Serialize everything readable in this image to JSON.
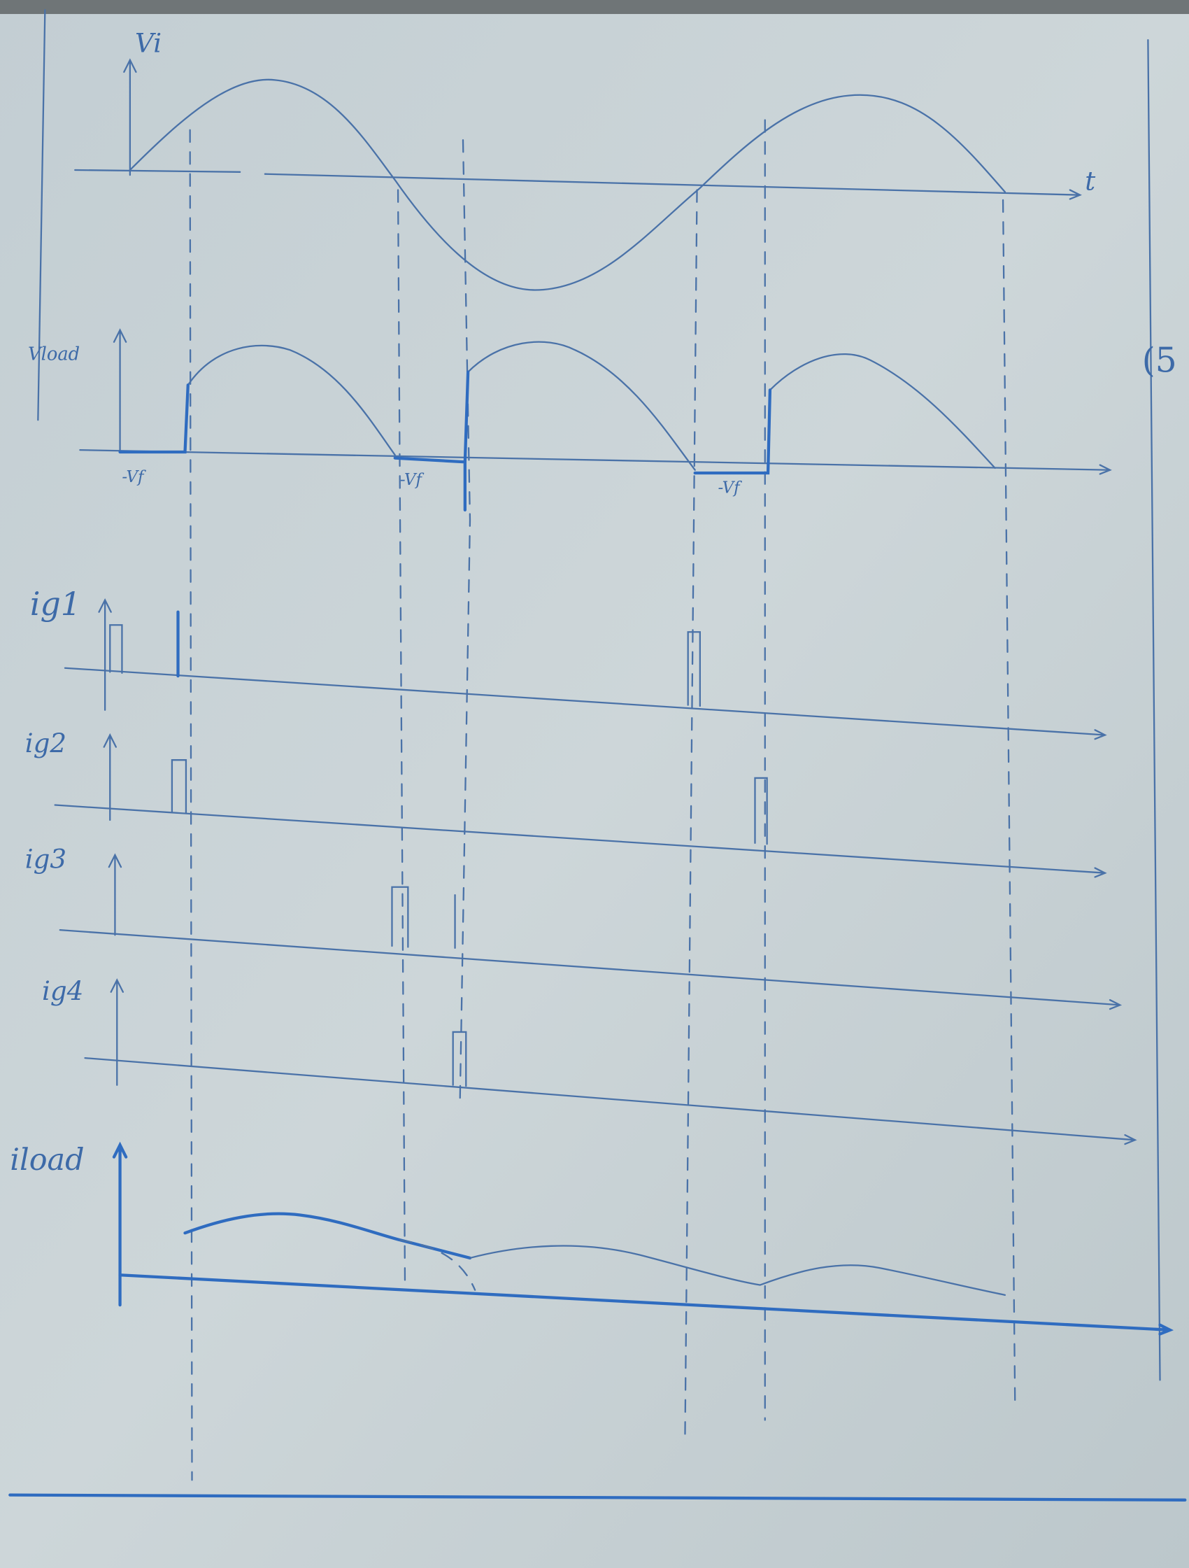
{
  "panels": [
    {
      "label": "Vi",
      "axis_label": "t"
    },
    {
      "label": "Vload",
      "annotations": [
        "-Vf",
        "-Vf",
        "-Vf"
      ]
    },
    {
      "label": "ig1"
    },
    {
      "label": "ig2"
    },
    {
      "label": "ig3"
    },
    {
      "label": "ig4"
    },
    {
      "label": "iload"
    }
  ],
  "margin_note": "(5"
}
